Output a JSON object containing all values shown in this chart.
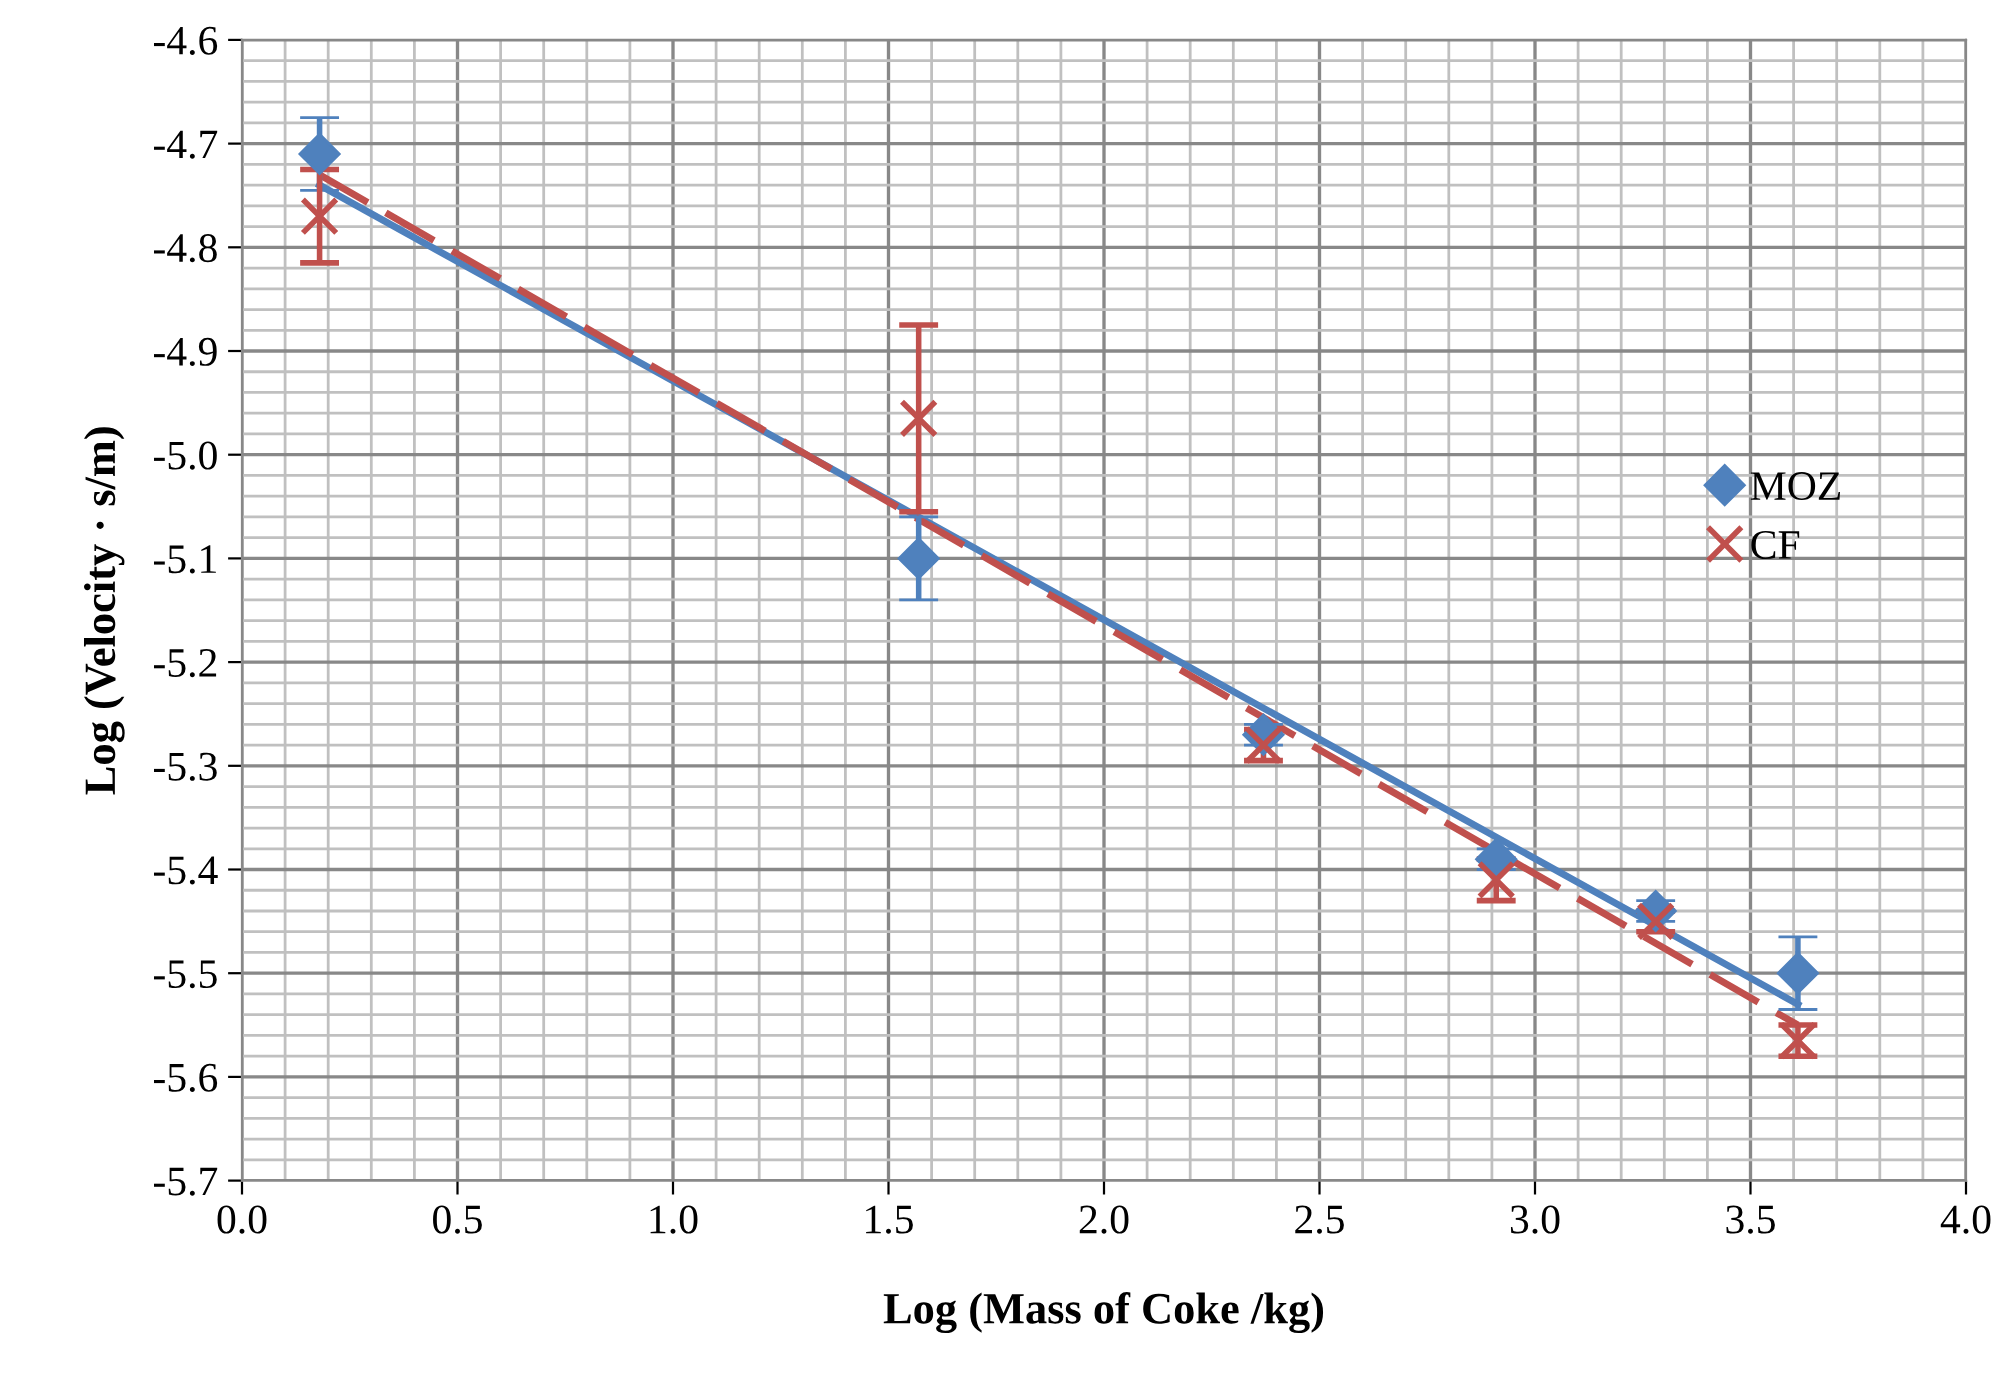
{
  "chart_data": {
    "type": "scatter",
    "xlabel": "Log (Mass of Coke /kg)",
    "ylabel": "Log (Velocity · s/m)",
    "xlim": [
      0,
      4
    ],
    "ylim": [
      -5.7,
      -4.6
    ],
    "xticks": [
      {
        "value": 0,
        "label": "0.0"
      },
      {
        "value": 0.5,
        "label": "0.5"
      },
      {
        "value": 1,
        "label": "1.0"
      },
      {
        "value": 1.5,
        "label": "1.5"
      },
      {
        "value": 2,
        "label": "2.0"
      },
      {
        "value": 2.5,
        "label": "2.5"
      },
      {
        "value": 3,
        "label": "3.0"
      },
      {
        "value": 3.5,
        "label": "3.5"
      },
      {
        "value": 4,
        "label": "4.0"
      }
    ],
    "yticks": [
      {
        "value": -5.7,
        "label": "-5.7"
      },
      {
        "value": -5.6,
        "label": "-5.6"
      },
      {
        "value": -5.5,
        "label": "-5.5"
      },
      {
        "value": -5.4,
        "label": "-5.4"
      },
      {
        "value": -5.3,
        "label": "-5.3"
      },
      {
        "value": -5.2,
        "label": "-5.2"
      },
      {
        "value": -5.1,
        "label": "-5.1"
      },
      {
        "value": -5.0,
        "label": "-5.0"
      },
      {
        "value": -4.9,
        "label": "-4.9"
      },
      {
        "value": -4.8,
        "label": "-4.8"
      },
      {
        "value": -4.7,
        "label": "-4.7"
      },
      {
        "value": -4.6,
        "label": "-4.6"
      }
    ],
    "grid": true,
    "legend": "right",
    "series": [
      {
        "type": "line",
        "color": "#4f81bd",
        "line_style": "solid",
        "x": [
          0.18,
          3.61
        ],
        "values": [
          -4.74,
          -5.53
        ]
      },
      {
        "type": "line",
        "color": "#c0504d",
        "line_style": "dashed",
        "x": [
          0.18,
          3.61
        ],
        "values": [
          -4.73,
          -5.55
        ]
      },
      {
        "name": "MOZ",
        "marker": "diamond",
        "color": "#4f81bd",
        "x": [
          0.18,
          1.57,
          2.37,
          2.91,
          3.28,
          3.61
        ],
        "values": [
          -4.71,
          -5.1,
          -5.27,
          -5.39,
          -5.44,
          -5.5
        ],
        "errors": [
          0.035,
          0.04,
          0.01,
          0.01,
          0.01,
          0.035
        ]
      },
      {
        "name": "CF",
        "marker": "cross",
        "color": "#c0504d",
        "x": [
          0.18,
          1.57,
          2.37,
          2.91,
          3.28,
          3.61
        ],
        "values": [
          -4.77,
          -4.965,
          -5.28,
          -5.41,
          -5.45,
          -5.565
        ],
        "errors": [
          0.045,
          0.09,
          0.015,
          0.02,
          0.01,
          0.015
        ]
      }
    ]
  }
}
